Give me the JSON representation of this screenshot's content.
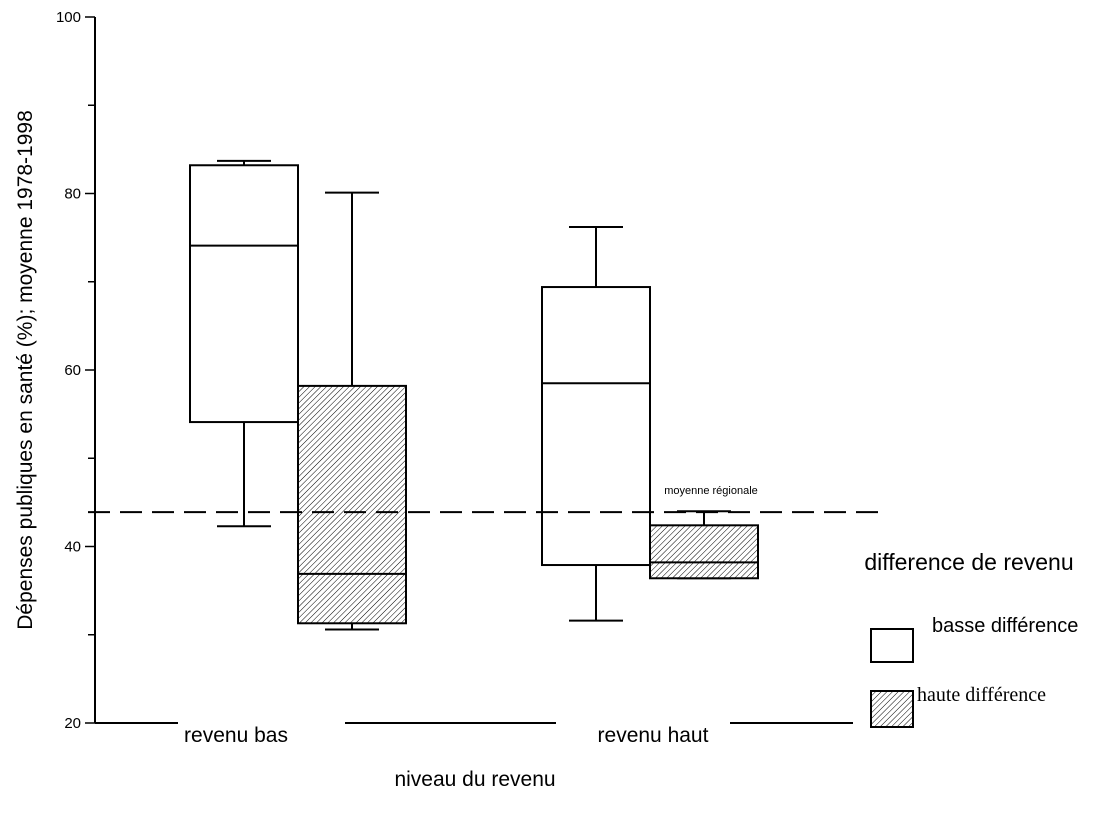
{
  "chart_data": {
    "type": "boxplot",
    "xlabel": "niveau du revenu",
    "ylabel": "Dépenses publiques en santé (%); moyenne 1978-1998",
    "ylim": [
      20,
      100
    ],
    "yticks": [
      20,
      40,
      60,
      80,
      100
    ],
    "categories": [
      "revenu bas",
      "revenu haut"
    ],
    "series": [
      {
        "name": "basse différence",
        "fill": "none",
        "boxes": [
          {
            "category": "revenu bas",
            "min": 42.3,
            "q1": 54.1,
            "median": 74.1,
            "q3": 83.2,
            "max": 83.7
          },
          {
            "category": "revenu haut",
            "min": 31.6,
            "q1": 37.9,
            "median": 58.5,
            "q3": 69.4,
            "max": 76.2
          }
        ]
      },
      {
        "name": "haute différence",
        "fill": "hatched",
        "boxes": [
          {
            "category": "revenu bas",
            "min": 30.6,
            "q1": 31.3,
            "median": 36.9,
            "q3": 58.2,
            "max": 80.1
          },
          {
            "category": "revenu haut",
            "min": 36.4,
            "q1": 36.4,
            "median": 38.2,
            "q3": 42.4,
            "max": 44.0
          }
        ]
      }
    ],
    "reference_line": {
      "value": 43.9,
      "style": "dashed",
      "label": "moyenne régionale"
    },
    "legend": {
      "title": "difference de revenu",
      "placement": "right",
      "entries": [
        "basse différence",
        "haute différence"
      ]
    },
    "grid": false
  },
  "colors": {
    "stroke": "#000000",
    "background": "#ffffff"
  }
}
